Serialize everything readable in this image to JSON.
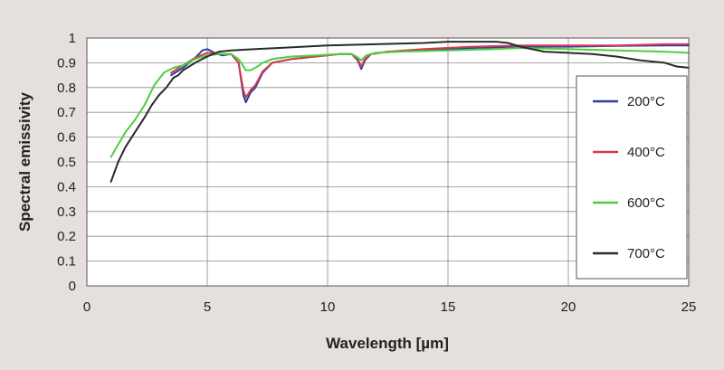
{
  "chart_data": {
    "type": "line",
    "title": "",
    "xlabel": "Wavelength [µm]",
    "ylabel": "Spectral emissivity",
    "xlim": [
      0,
      25
    ],
    "ylim": [
      0,
      1
    ],
    "x_ticks": [
      0,
      5,
      10,
      15,
      20,
      25
    ],
    "y_ticks": [
      0,
      0.1,
      0.2,
      0.3,
      0.4,
      0.5,
      0.6,
      0.7,
      0.8,
      0.9,
      1
    ],
    "x_tick_labels": [
      "0",
      "5",
      "10",
      "15",
      "20",
      "25"
    ],
    "y_tick_labels": [
      "0",
      "0.1",
      "0.2",
      "0.3",
      "0.4",
      "0.5",
      "0.6",
      "0.7",
      "0.8",
      "0.9",
      "1"
    ],
    "grid": true,
    "legend_position": "right",
    "series": [
      {
        "name": "200°C",
        "color": "#2a3fa6",
        "x": [
          3.5,
          4.0,
          4.5,
          4.8,
          5.0,
          5.3,
          5.6,
          6.0,
          6.3,
          6.5,
          6.6,
          6.8,
          7.0,
          7.3,
          7.7,
          8.5,
          9.5,
          10.5,
          11.0,
          11.25,
          11.4,
          11.55,
          11.8,
          12.5,
          14,
          16,
          18,
          20,
          22,
          24,
          25
        ],
        "y": [
          0.85,
          0.88,
          0.92,
          0.95,
          0.955,
          0.94,
          0.93,
          0.935,
          0.9,
          0.77,
          0.74,
          0.78,
          0.8,
          0.86,
          0.9,
          0.915,
          0.925,
          0.935,
          0.935,
          0.91,
          0.875,
          0.91,
          0.935,
          0.945,
          0.95,
          0.96,
          0.965,
          0.965,
          0.968,
          0.97,
          0.97
        ]
      },
      {
        "name": "400°C",
        "color": "#d83a4a",
        "x": [
          3.5,
          4.0,
          4.5,
          5.0,
          5.5,
          6.0,
          6.3,
          6.5,
          6.6,
          6.8,
          7.0,
          7.3,
          7.7,
          8.5,
          9.5,
          10.5,
          11.0,
          11.25,
          11.4,
          11.55,
          11.8,
          12.5,
          14,
          16,
          18,
          20,
          22,
          24,
          25
        ],
        "y": [
          0.86,
          0.89,
          0.92,
          0.94,
          0.935,
          0.935,
          0.9,
          0.79,
          0.76,
          0.79,
          0.81,
          0.865,
          0.9,
          0.915,
          0.925,
          0.935,
          0.935,
          0.915,
          0.885,
          0.915,
          0.935,
          0.945,
          0.955,
          0.965,
          0.97,
          0.97,
          0.97,
          0.975,
          0.975
        ]
      },
      {
        "name": "600°C",
        "color": "#4ccf3e",
        "x": [
          1.0,
          1.3,
          1.6,
          2.0,
          2.4,
          2.8,
          3.2,
          3.6,
          4.0,
          4.5,
          5.0,
          5.5,
          6.0,
          6.3,
          6.6,
          6.8,
          7.0,
          7.3,
          7.7,
          8.5,
          9.5,
          10.5,
          11.0,
          11.2,
          11.4,
          11.6,
          12.0,
          13,
          15,
          17,
          18,
          20,
          22,
          24,
          25
        ],
        "y": [
          0.52,
          0.57,
          0.62,
          0.67,
          0.73,
          0.81,
          0.86,
          0.88,
          0.89,
          0.915,
          0.93,
          0.935,
          0.935,
          0.915,
          0.87,
          0.87,
          0.88,
          0.9,
          0.915,
          0.925,
          0.93,
          0.935,
          0.935,
          0.925,
          0.91,
          0.93,
          0.94,
          0.945,
          0.95,
          0.955,
          0.96,
          0.955,
          0.95,
          0.945,
          0.94
        ]
      },
      {
        "name": "700°C",
        "color": "#2a2a2a",
        "x": [
          1.0,
          1.3,
          1.6,
          2.0,
          2.4,
          2.7,
          3.0,
          3.3,
          3.6,
          3.8,
          4.0,
          4.5,
          5.0,
          5.5,
          6.0,
          7,
          8,
          10,
          12,
          14,
          15,
          16,
          17,
          17.5,
          18,
          19,
          20,
          21,
          22,
          23,
          24,
          24.5,
          25
        ],
        "y": [
          0.42,
          0.5,
          0.56,
          0.62,
          0.68,
          0.73,
          0.77,
          0.8,
          0.84,
          0.85,
          0.87,
          0.9,
          0.925,
          0.945,
          0.95,
          0.955,
          0.96,
          0.97,
          0.975,
          0.98,
          0.985,
          0.985,
          0.985,
          0.98,
          0.965,
          0.945,
          0.94,
          0.935,
          0.925,
          0.91,
          0.9,
          0.885,
          0.88
        ]
      }
    ]
  }
}
